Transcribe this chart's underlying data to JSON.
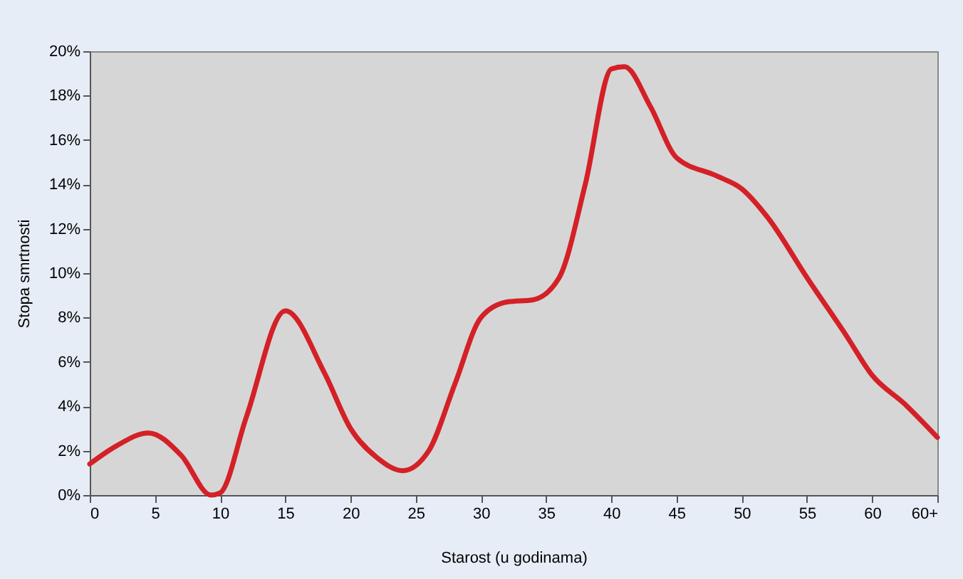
{
  "chart_data": {
    "type": "line",
    "xlabel": "Starost (u godinama)",
    "ylabel": "Stopa smrtnosti",
    "x": [
      0,
      2,
      4.5,
      7,
      9.3,
      10,
      12,
      15,
      18,
      20,
      22,
      24,
      26,
      28,
      30,
      32,
      34,
      36,
      38,
      40,
      41,
      43,
      45,
      48,
      50,
      52,
      55,
      58,
      60,
      62.5,
      65
    ],
    "series": [
      {
        "color": "#d42027",
        "values": [
          1.4,
          2.2,
          2.8,
          1.8,
          0,
          0.1,
          3.5,
          8.3,
          5.5,
          3,
          1.7,
          1.1,
          2,
          5,
          8,
          8.7,
          8.8,
          9.8,
          14,
          19.2,
          19.3,
          17.5,
          15.2,
          14.4,
          13.8,
          12.5,
          9.8,
          7.2,
          5.4,
          4.1,
          2.6
        ]
      }
    ],
    "xlim": [
      0,
      65
    ],
    "xticks": [
      0,
      5,
      10,
      15,
      20,
      25,
      30,
      35,
      40,
      45,
      50,
      55,
      60,
      {
        "value": 65,
        "label": "60+"
      }
    ],
    "ylim": [
      0,
      20
    ],
    "yticks": [
      {
        "value": 0,
        "label": "0%"
      },
      {
        "value": 2,
        "label": "2%"
      },
      {
        "value": 4,
        "label": "4%"
      },
      {
        "value": 6,
        "label": "6%"
      },
      {
        "value": 8,
        "label": "8%"
      },
      {
        "value": 10,
        "label": "10%"
      },
      {
        "value": 12,
        "label": "12%"
      },
      {
        "value": 14,
        "label": "14%"
      },
      {
        "value": 16,
        "label": "16%"
      },
      {
        "value": 18,
        "label": "18%"
      },
      {
        "value": 20,
        "label": "20%"
      }
    ],
    "grid": false,
    "legend": false,
    "marker": "none",
    "line_style": "solid"
  }
}
